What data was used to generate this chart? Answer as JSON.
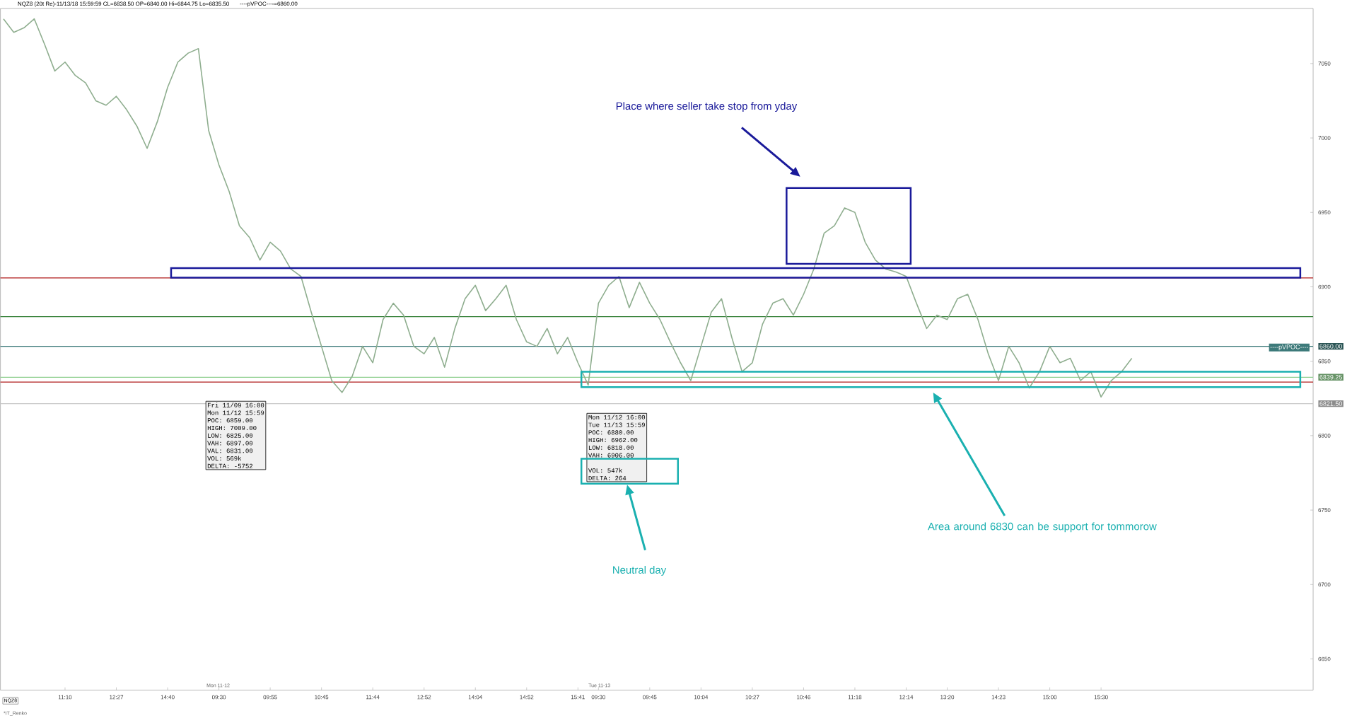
{
  "chart_data": {
    "type": "line",
    "title": "NQZ8 (20t Re)-11/13/18 15:59:59 CL=6838.50 OP=6840.00 Hi=6844.75 Lo=6835.50",
    "subtitle": "----pVPOC----=6860.00",
    "categories": [
      null,
      null,
      null,
      null,
      null,
      null,
      "11:10",
      null,
      null,
      null,
      null,
      "12:27",
      null,
      null,
      null,
      null,
      "14:40",
      null,
      null,
      null,
      null,
      "09:30",
      null,
      null,
      null,
      null,
      "09:55",
      null,
      null,
      null,
      null,
      "10:45",
      null,
      null,
      null,
      null,
      "11:44",
      null,
      null,
      null,
      null,
      "12:52",
      null,
      null,
      null,
      null,
      "14:04",
      null,
      null,
      null,
      null,
      "14:52",
      null,
      null,
      null,
      null,
      "15:41",
      null,
      "09:30",
      null,
      null,
      null,
      null,
      "09:45",
      null,
      null,
      null,
      null,
      "10:04",
      null,
      null,
      null,
      null,
      "10:27",
      null,
      null,
      null,
      null,
      "10:46",
      null,
      null,
      null,
      null,
      "11:18",
      null,
      null,
      null,
      null,
      "12:14",
      null,
      null,
      null,
      "13:20",
      null,
      null,
      null,
      null,
      "14:23",
      null,
      null,
      null,
      null,
      "15:00",
      null,
      null,
      null,
      null,
      "15:30",
      null,
      null,
      null
    ],
    "series": [
      {
        "color": "#8fae8f",
        "values": [
          7080,
          7071,
          7074,
          7080,
          7063,
          7045,
          7051,
          7042,
          7037,
          7025,
          7022,
          7028,
          7019,
          7008,
          6993,
          7011,
          7034,
          7051,
          7057,
          7060,
          7005,
          6982,
          6964,
          6941,
          6933,
          6918,
          6930,
          6924,
          6912,
          6907,
          6883,
          6860,
          6837,
          6829,
          6840,
          6860,
          6849,
          6878,
          6889,
          6881,
          6860,
          6855,
          6866,
          6846,
          6872,
          6892,
          6901,
          6884,
          6892,
          6901,
          6878,
          6863,
          6860,
          6872,
          6855,
          6866,
          6849,
          6834,
          6889,
          6901,
          6907,
          6886,
          6903,
          6889,
          6878,
          6863,
          6849,
          6837,
          6860,
          6883,
          6892,
          6866,
          6843,
          6849,
          6875,
          6889,
          6892,
          6881,
          6895,
          6912,
          6936,
          6941,
          6953,
          6950,
          6930,
          6918,
          6912,
          6910,
          6907,
          6889,
          6872,
          6881,
          6878,
          6892,
          6895,
          6878,
          6855,
          6837,
          6860,
          6849,
          6832,
          6843,
          6860,
          6849,
          6852,
          6837,
          6843,
          6826,
          6837,
          6843,
          6852
        ]
      }
    ],
    "ylim": [
      6629,
      7087
    ],
    "yticks": [
      6650,
      6700,
      6750,
      6800,
      6850,
      6900,
      6950,
      7000,
      7050
    ],
    "ref_lines": [
      {
        "axis": "y",
        "value": 6906,
        "color": "#b01c1c"
      },
      {
        "axis": "y",
        "value": 6880,
        "color": "#2e7d32"
      },
      {
        "axis": "y",
        "value": 6836,
        "color": "#b01c1c"
      },
      {
        "axis": "y",
        "value": 6860,
        "label": "6860.00",
        "color": "#3d7a7a"
      },
      {
        "axis": "y",
        "value": 6839.25,
        "label": "6839.25",
        "color": "#90d090"
      },
      {
        "axis": "y",
        "value": 6821.5,
        "label": "6821.50",
        "color": "#c8c8c8"
      }
    ],
    "annotations": [
      "Place where seller take stop from yday",
      "Neutral day",
      "Area around 6830 can be support for tommorow",
      "Fri 11/09 16:00",
      "Mon 11/12 15:59",
      "POC: 6859.00",
      "HIGH: 7009.00",
      "LOW: 6825.00",
      "VAH: 6897.00",
      "VAL: 6831.00",
      "VOL: 569k",
      "DELTA: -5752",
      "Mon 11/12 16:00",
      "Tue 11/13 15:59",
      "POC: 6880.00",
      "HIGH: 6962.00",
      "LOW: 6818.00",
      "VAH: 6906.00",
      "VOL: 547k",
      "DELTA: 264",
      "Mon 11-12",
      "Tue 11-13",
      "NQZ8",
      "*IT_Renko",
      "----pVPOC----"
    ],
    "marker": "none",
    "line_style": "solid"
  }
}
